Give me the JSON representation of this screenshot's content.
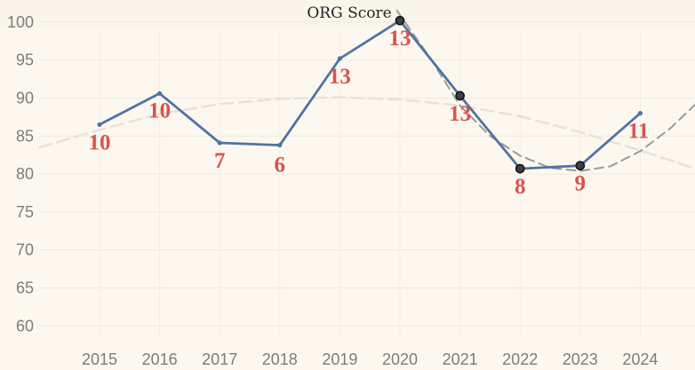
{
  "chart_data": {
    "type": "line",
    "title": "ORG Score",
    "xlabel": "",
    "ylabel": "",
    "x": [
      "2015",
      "2016",
      "2017",
      "2018",
      "2019",
      "2020",
      "2021",
      "2022",
      "2023",
      "2024"
    ],
    "y_ticks": [
      "100",
      "95",
      "90",
      "85",
      "80",
      "75",
      "70",
      "65",
      "60"
    ],
    "ylim": [
      58,
      102
    ],
    "grid": true,
    "series": [
      {
        "values": [
          86.5,
          90.6,
          84.1,
          83.8,
          95.2,
          100.2,
          90.3,
          80.7,
          81.1,
          88.0
        ],
        "labels": [
          "10",
          "10",
          "7",
          "6",
          "13",
          "13",
          "13",
          "8",
          "9",
          "11"
        ],
        "highlighted": [
          false,
          false,
          false,
          false,
          false,
          true,
          true,
          true,
          true,
          false
        ],
        "color": "#4e74a6"
      }
    ],
    "trend_lines": [
      {
        "style": "long-term trend",
        "color": "#e8e2d7",
        "x": [
          2014.0,
          2015.0,
          2016.0,
          2017.0,
          2018.0,
          2019.0,
          2020.0,
          2021.0,
          2022.0,
          2023.0,
          2024.0,
          2025.0
        ],
        "y": [
          83.5,
          85.8,
          87.9,
          89.2,
          89.9,
          90.1,
          89.8,
          89.0,
          87.6,
          85.5,
          83.1,
          80.5
        ]
      },
      {
        "style": "local trend",
        "color": "#9a9a9a",
        "x": [
          2019.95,
          2020.5,
          2021.0,
          2021.5,
          2022.0,
          2022.5,
          2023.0,
          2023.5,
          2024.0,
          2024.5,
          2025.0
        ],
        "y": [
          101.5,
          95.3,
          89.0,
          85.0,
          82.4,
          80.8,
          80.4,
          81.0,
          83.0,
          86.0,
          89.8
        ]
      }
    ],
    "colors": {
      "background": "#fdf8ef",
      "line": "#4e74a6",
      "marker_fill": "#3a3f4a",
      "label": "#d9534f"
    }
  }
}
